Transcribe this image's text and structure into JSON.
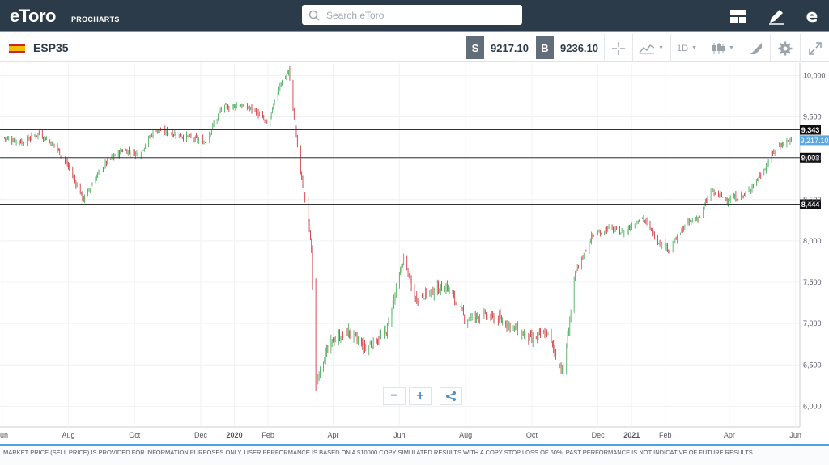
{
  "header": {
    "logo": "eToro",
    "logo_sub": "PROCHARTS",
    "search_placeholder": "Search eToro"
  },
  "instrument": {
    "symbol": "ESP35",
    "sell_badge": "S",
    "sell_price": "9217.10",
    "buy_badge": "B",
    "buy_price": "9236.10",
    "timeframe": "1D"
  },
  "chart_data": {
    "type": "candlestick",
    "x_ticks": [
      "Jun",
      "Aug",
      "Oct",
      "Dec",
      "2020",
      "Feb",
      "Apr",
      "Jun",
      "Aug",
      "Oct",
      "Dec",
      "2021",
      "Feb",
      "Apr",
      "Jun"
    ],
    "y_ticks": [
      "10,000",
      "9,500",
      "9,000",
      "8,500",
      "8,000",
      "7,500",
      "7,000",
      "6,500",
      "6,000"
    ],
    "ylim": [
      5750,
      10150
    ],
    "horizontal_lines": [
      {
        "value": 9343,
        "label": "9,343"
      },
      {
        "value": 9008,
        "label": "9,008"
      },
      {
        "value": 8444,
        "label": "8,444"
      }
    ],
    "current_price": {
      "value": 9217.1,
      "label": "9,217.10"
    },
    "close_path": [
      [
        "2019-06-01",
        9250
      ],
      [
        "2019-06-20",
        9200
      ],
      [
        "2019-07-05",
        9300
      ],
      [
        "2019-07-20",
        9150
      ],
      [
        "2019-08-01",
        8900
      ],
      [
        "2019-08-15",
        8500
      ],
      [
        "2019-08-25",
        8750
      ],
      [
        "2019-09-05",
        8950
      ],
      [
        "2019-09-20",
        9100
      ],
      [
        "2019-10-05",
        9050
      ],
      [
        "2019-10-20",
        9350
      ],
      [
        "2019-11-05",
        9300
      ],
      [
        "2019-11-20",
        9250
      ],
      [
        "2019-12-05",
        9200
      ],
      [
        "2019-12-20",
        9600
      ],
      [
        "2020-01-05",
        9650
      ],
      [
        "2020-01-20",
        9580
      ],
      [
        "2020-02-01",
        9400
      ],
      [
        "2020-02-12",
        9900
      ],
      [
        "2020-02-20",
        10050
      ],
      [
        "2020-02-25",
        9500
      ],
      [
        "2020-03-01",
        8900
      ],
      [
        "2020-03-08",
        8350
      ],
      [
        "2020-03-12",
        7900
      ],
      [
        "2020-03-16",
        6200
      ],
      [
        "2020-03-20",
        6500
      ],
      [
        "2020-04-01",
        6800
      ],
      [
        "2020-04-15",
        6900
      ],
      [
        "2020-05-01",
        6700
      ],
      [
        "2020-05-20",
        6900
      ],
      [
        "2020-06-05",
        7800
      ],
      [
        "2020-06-15",
        7300
      ],
      [
        "2020-07-01",
        7400
      ],
      [
        "2020-07-15",
        7450
      ],
      [
        "2020-08-01",
        7050
      ],
      [
        "2020-08-15",
        7100
      ],
      [
        "2020-09-01",
        7050
      ],
      [
        "2020-09-15",
        6950
      ],
      [
        "2020-10-01",
        6800
      ],
      [
        "2020-10-15",
        6900
      ],
      [
        "2020-10-30",
        6400
      ],
      [
        "2020-11-10",
        7600
      ],
      [
        "2020-11-25",
        8050
      ],
      [
        "2020-12-10",
        8150
      ],
      [
        "2020-12-25",
        8100
      ],
      [
        "2021-01-10",
        8300
      ],
      [
        "2021-01-25",
        8000
      ],
      [
        "2021-02-05",
        7900
      ],
      [
        "2021-02-20",
        8200
      ],
      [
        "2021-03-05",
        8300
      ],
      [
        "2021-03-15",
        8600
      ],
      [
        "2021-03-30",
        8500
      ],
      [
        "2021-04-15",
        8550
      ],
      [
        "2021-04-30",
        8800
      ],
      [
        "2021-05-15",
        9150
      ],
      [
        "2021-05-28",
        9217
      ]
    ]
  },
  "controls": {
    "zoom_out": "−",
    "zoom_in": "+",
    "share_icon": "share-icon"
  },
  "footer": {
    "disclaimer": "MARKET PRICE (SELL PRICE) IS PROVIDED FOR INFORMATION PURPOSES ONLY. USER PERFORMANCE IS BASED ON A $10000 COPY SIMULATED RESULTS WITH A COPY STOP LOSS OF 60%. PAST PERFORMANCE IS NOT INDICATIVE OF FUTURE RESULTS."
  },
  "colors": {
    "header_bg": "#2c3b4a",
    "accent": "#4aa3df",
    "up": "#3aa64a",
    "down": "#c8252c"
  }
}
